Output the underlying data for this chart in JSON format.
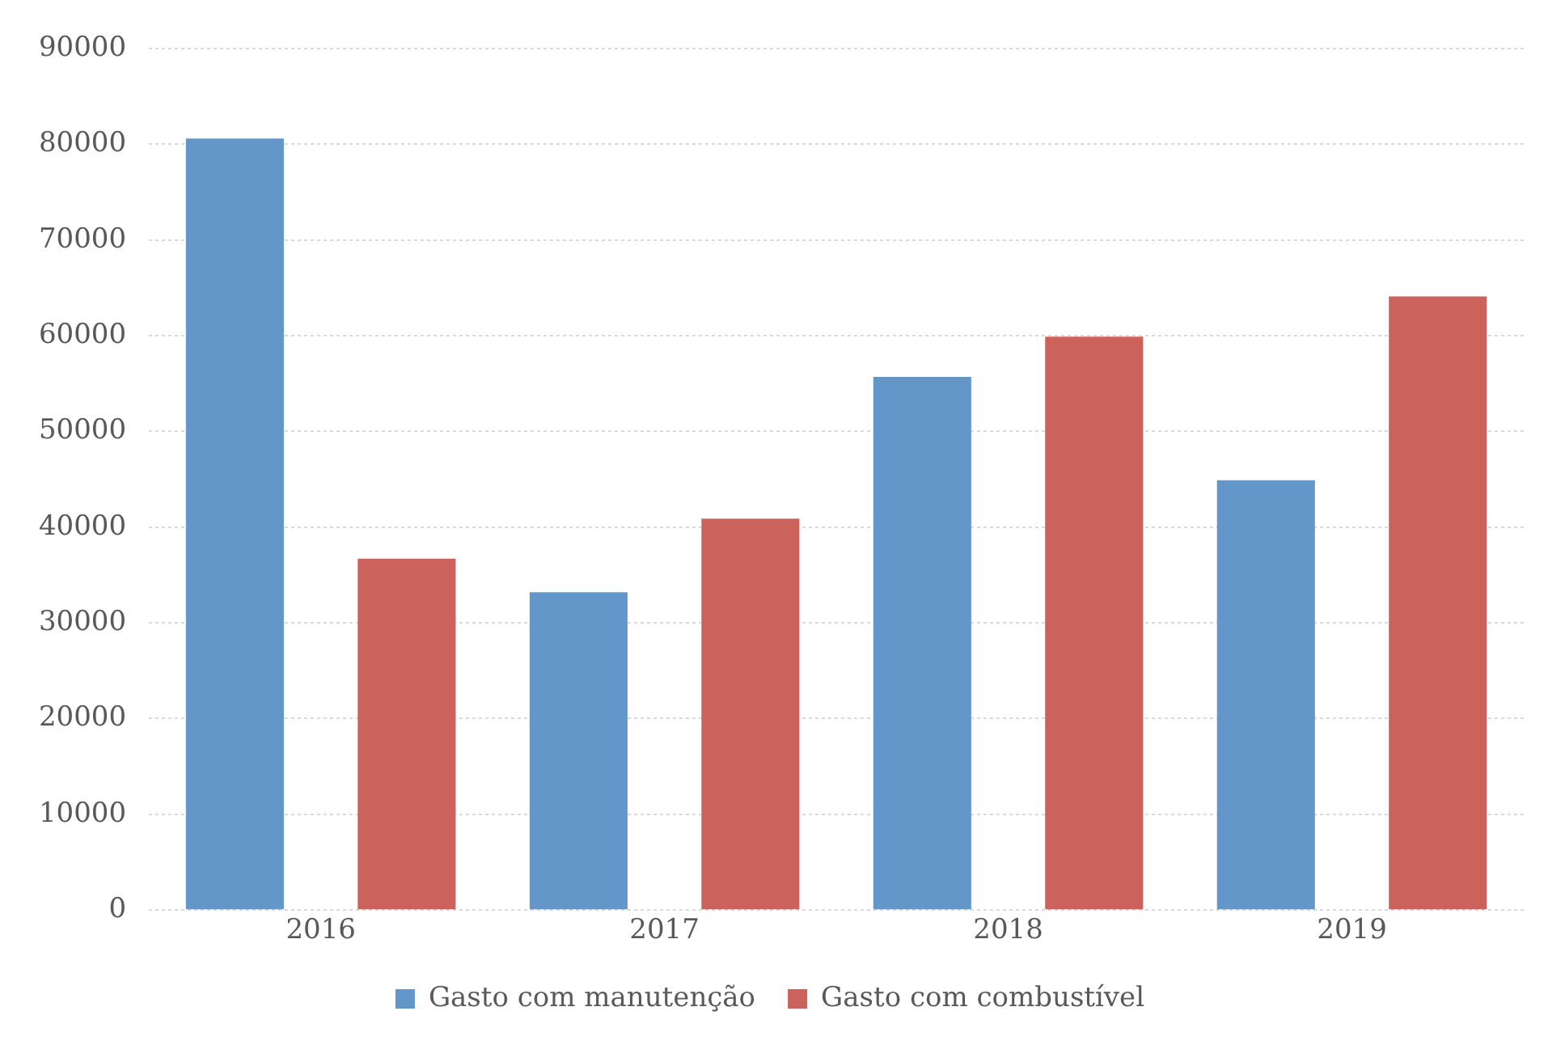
{
  "chart_data": {
    "type": "bar",
    "categories": [
      "2016",
      "2017",
      "2018",
      "2019"
    ],
    "series": [
      {
        "name": "Gasto com manutenção",
        "color": "#6497c9",
        "values": [
          80600,
          33200,
          55700,
          44900
        ]
      },
      {
        "name": "Gasto com combustível",
        "color": "#cc625c",
        "values": [
          36700,
          40900,
          59900,
          64100
        ]
      }
    ],
    "ylim": [
      0,
      90000
    ],
    "yticks": [
      0,
      10000,
      20000,
      30000,
      40000,
      50000,
      60000,
      70000,
      80000,
      90000
    ],
    "grid": "y",
    "legend": "bottom"
  }
}
